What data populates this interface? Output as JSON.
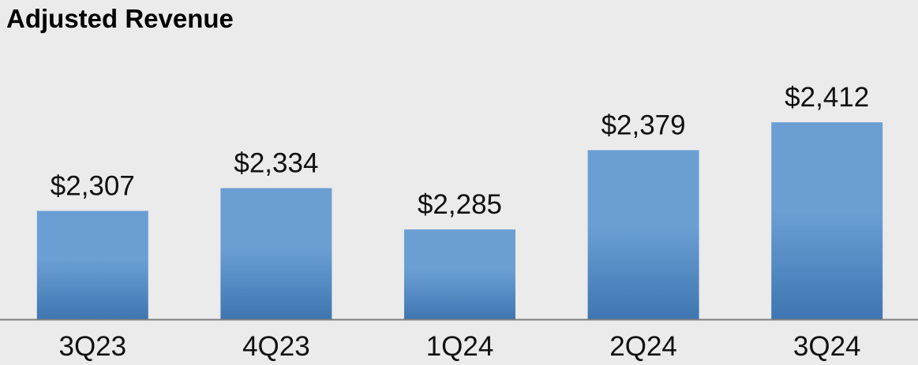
{
  "chart_data": {
    "type": "bar",
    "title": "Adjusted Revenue",
    "categories": [
      "3Q23",
      "4Q23",
      "1Q24",
      "2Q24",
      "3Q24"
    ],
    "values": [
      2307,
      2334,
      2285,
      2379,
      2412
    ],
    "value_labels": [
      "$2,307",
      "$2,334",
      "$2,285",
      "$2,379",
      "$2,412"
    ],
    "xlabel": "",
    "ylabel": "",
    "ylim": [
      2100,
      2450
    ],
    "grid": false,
    "legend": "none",
    "colors": {
      "bar_top": "#6b9fd4",
      "bar_bottom": "#3f76b1",
      "axis": "#7f7f7f",
      "background": "#ebebeb"
    }
  }
}
